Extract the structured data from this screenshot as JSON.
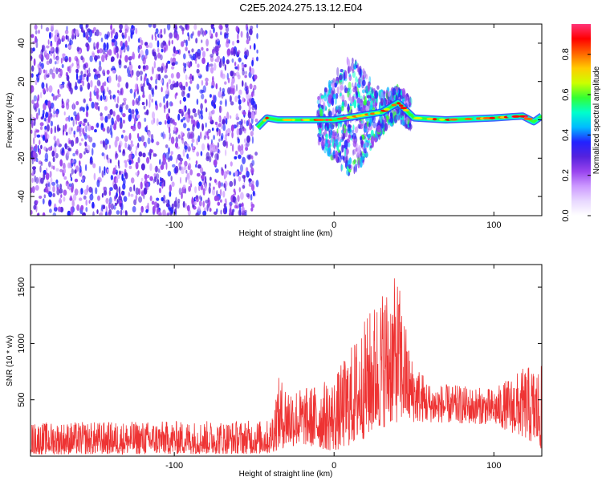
{
  "title": "C2E5.2024.275.13.12.E04",
  "colors": {
    "snr_line": "#ee3333",
    "spectrogram_noise": "#7733dd",
    "colormap": [
      "#ffffff",
      "#e8d8ff",
      "#cc99ff",
      "#9944ee",
      "#5522dd",
      "#2222ff",
      "#00bbff",
      "#00ffcc",
      "#33ff33",
      "#ccff00",
      "#ffcc00",
      "#ff6600",
      "#ff0000",
      "#ff3377"
    ]
  },
  "chart_data": [
    {
      "type": "heatmap",
      "name": "spectrogram",
      "xlabel": "Height of straight line (km)",
      "ylabel": "Frequency (Hz)",
      "xlim": [
        -190,
        130
      ],
      "ylim": [
        -50,
        50
      ],
      "x_ticks": [
        -100,
        0,
        100
      ],
      "y_ticks": [
        -40,
        -20,
        0,
        20,
        40
      ],
      "colorbar": {
        "label": "Normalized spectral amplitude",
        "range": [
          0,
          0.95
        ],
        "ticks": [
          0.0,
          0.2,
          0.4,
          0.6,
          0.8
        ]
      },
      "signal_track": [
        {
          "x": -48,
          "y": -4
        },
        {
          "x": -42,
          "y": 1
        },
        {
          "x": -35,
          "y": 0
        },
        {
          "x": -25,
          "y": 0
        },
        {
          "x": -10,
          "y": 0
        },
        {
          "x": 0,
          "y": 0
        },
        {
          "x": 15,
          "y": 2
        },
        {
          "x": 30,
          "y": 4
        },
        {
          "x": 40,
          "y": 9
        },
        {
          "x": 50,
          "y": 1
        },
        {
          "x": 70,
          "y": 0
        },
        {
          "x": 100,
          "y": 1
        },
        {
          "x": 118,
          "y": 2
        },
        {
          "x": 125,
          "y": -1
        },
        {
          "x": 130,
          "y": 2
        }
      ],
      "noise_region_x": [
        -190,
        -48
      ],
      "burst_region_x": [
        -10,
        48
      ]
    },
    {
      "type": "line",
      "name": "snr",
      "xlabel": "Height of straight line (km)",
      "ylabel": "SNR (10 * v/v)",
      "xlim": [
        -190,
        130
      ],
      "ylim": [
        0,
        1700
      ],
      "x_ticks": [
        -100,
        0,
        100
      ],
      "y_ticks": [
        500,
        1000,
        1500
      ],
      "envelope": [
        {
          "x": -190,
          "low": 15,
          "high": 300
        },
        {
          "x": -40,
          "low": 20,
          "high": 320
        },
        {
          "x": -35,
          "low": 60,
          "high": 700
        },
        {
          "x": -20,
          "low": 100,
          "high": 600
        },
        {
          "x": 0,
          "low": 40,
          "high": 700
        },
        {
          "x": 15,
          "low": 120,
          "high": 1100
        },
        {
          "x": 30,
          "low": 250,
          "high": 1500
        },
        {
          "x": 40,
          "low": 300,
          "high": 1600
        },
        {
          "x": 48,
          "low": 300,
          "high": 900
        },
        {
          "x": 60,
          "low": 300,
          "high": 650
        },
        {
          "x": 100,
          "low": 280,
          "high": 600
        },
        {
          "x": 120,
          "low": 150,
          "high": 800
        },
        {
          "x": 130,
          "low": 50,
          "high": 800
        }
      ]
    }
  ]
}
